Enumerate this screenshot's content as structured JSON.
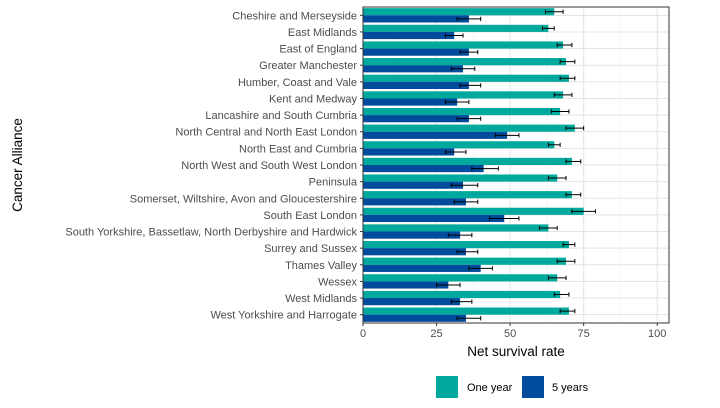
{
  "chart_data": {
    "type": "bar",
    "orientation": "horizontal",
    "xlabel": "Net survival rate",
    "ylabel": "Cancer Alliance",
    "xlim": [
      0,
      104
    ],
    "x_ticks": [
      0,
      25,
      50,
      75,
      100
    ],
    "grid": true,
    "legend_position": "bottom",
    "categories": [
      "Cheshire and Merseyside",
      "East Midlands",
      "East of England",
      "Greater Manchester",
      "Humber, Coast and Vale",
      "Kent and Medway",
      "Lancashire and South Cumbria",
      "North Central and North East London",
      "North East and Cumbria",
      "North West and South West London",
      "Peninsula",
      "Somerset, Wiltshire, Avon and Gloucestershire",
      "South East London",
      "South Yorkshire, Bassetlaw, North Derbyshire and Hardwick",
      "Surrey and Sussex",
      "Thames Valley",
      "Wessex",
      "West Midlands",
      "West Yorkshire and Harrogate"
    ],
    "series": [
      {
        "name": "One year",
        "color": "#00a99d",
        "values": [
          65,
          63,
          68,
          69,
          70,
          68,
          67,
          72,
          65,
          71,
          66,
          71,
          75,
          63,
          70,
          69,
          66,
          67,
          70
        ],
        "error_low": [
          62,
          61,
          66,
          67,
          67,
          65,
          64,
          69,
          63,
          69,
          63,
          69,
          71,
          60,
          68,
          66,
          63,
          65,
          67
        ],
        "error_high": [
          68,
          65,
          71,
          72,
          72,
          71,
          70,
          75,
          67,
          74,
          69,
          74,
          79,
          66,
          72,
          72,
          69,
          70,
          72
        ]
      },
      {
        "name": "5 years",
        "color": "#004b9b",
        "values": [
          36,
          31,
          36,
          34,
          36,
          32,
          36,
          49,
          31,
          41,
          34,
          35,
          48,
          33,
          35,
          40,
          29,
          33,
          35
        ],
        "error_low": [
          32,
          28,
          33,
          30,
          33,
          28,
          32,
          45,
          28,
          37,
          30,
          31,
          43,
          29,
          32,
          36,
          25,
          30,
          32
        ],
        "error_high": [
          40,
          34,
          39,
          38,
          40,
          36,
          40,
          53,
          35,
          46,
          39,
          39,
          53,
          37,
          39,
          44,
          33,
          37,
          40
        ]
      }
    ]
  }
}
